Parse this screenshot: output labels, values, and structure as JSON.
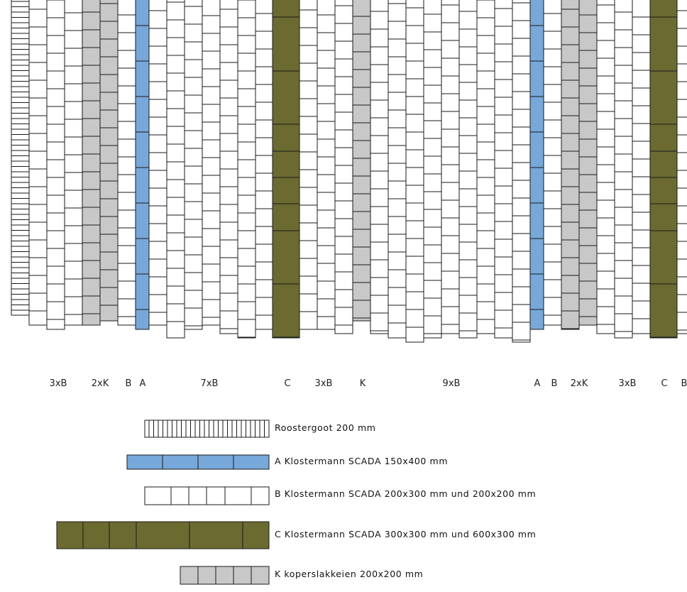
{
  "colors": {
    "A": "#78a8da",
    "B": "#ffffff",
    "C": "#6b6b31",
    "K": "#c8c8c8",
    "stroke": "#1a1a1a"
  },
  "column_labels": [
    "3xB",
    "2xK",
    "B",
    "A",
    "7xB",
    "C",
    "3xB",
    "K",
    "9xB",
    "A",
    "B",
    "2xK",
    "3xB",
    "C",
    "B"
  ],
  "legend": [
    {
      "key": "R",
      "text": "Roostergoot 200 mm"
    },
    {
      "key": "A",
      "text": "A Klostermann SCADA 150x400 mm"
    },
    {
      "key": "B",
      "text": "B Klostermann SCADA 200x300 mm und 200x200 mm"
    },
    {
      "key": "C",
      "text": "C Klostermann SCADA 300x300 mm und 600x300 mm"
    },
    {
      "key": "K",
      "text": "K koperslakkeien 200x200 mm"
    }
  ]
}
